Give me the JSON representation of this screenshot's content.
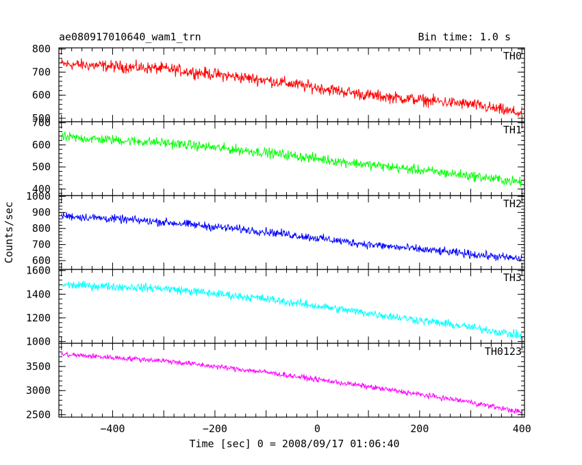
{
  "header": {
    "title": "ae080917010640_wam1_trn",
    "bin_time": "Bin time: 1.0 s"
  },
  "axes": {
    "xlabel": "Time [sec] 0 = 2008/09/17 01:06:40",
    "ylabel": "Counts/sec"
  },
  "chart_data": {
    "type": "line",
    "title": "ae080917010640_wam1_trn",
    "xlabel": "Time [sec] 0 = 2008/09/17 01:06:40",
    "ylabel": "Counts/sec",
    "xlim": [
      -505,
      405
    ],
    "x_ticks": [
      -400,
      -200,
      0,
      200,
      400
    ],
    "bin_time_s": 1.0,
    "x_range": [
      -500,
      400
    ],
    "grid": false,
    "panels": [
      {
        "name": "TH0",
        "color": "#ff0000",
        "ylim": [
          485,
          805
        ],
        "y_ticks": [
          500,
          600,
          700,
          800
        ],
        "trend": {
          "x": [
            -500,
            -300,
            -100,
            100,
            300,
            400
          ],
          "y": [
            735,
            715,
            665,
            600,
            560,
            520
          ]
        },
        "noise_amplitude": 40
      },
      {
        "name": "TH1",
        "color": "#00ff00",
        "ylim": [
          370,
          705
        ],
        "y_ticks": [
          400,
          500,
          600,
          700
        ],
        "trend": {
          "x": [
            -500,
            -300,
            -100,
            100,
            300,
            400
          ],
          "y": [
            635,
            610,
            565,
            510,
            460,
            430
          ]
        },
        "noise_amplitude": 35
      },
      {
        "name": "TH2",
        "color": "#0000ff",
        "ylim": [
          545,
          1005
        ],
        "y_ticks": [
          600,
          700,
          800,
          900,
          1000
        ],
        "trend": {
          "x": [
            -500,
            -300,
            -100,
            100,
            300,
            400
          ],
          "y": [
            880,
            840,
            780,
            700,
            640,
            610
          ]
        },
        "noise_amplitude": 40
      },
      {
        "name": "TH3",
        "color": "#00ffff",
        "ylim": [
          985,
          1610
        ],
        "y_ticks": [
          1000,
          1200,
          1400,
          1600
        ],
        "trend": {
          "x": [
            -500,
            -300,
            -100,
            100,
            300,
            400
          ],
          "y": [
            1480,
            1450,
            1360,
            1240,
            1120,
            1050
          ]
        },
        "noise_amplitude": 55
      },
      {
        "name": "TH0123",
        "color": "#ff00ff",
        "ylim": [
          2450,
          3980
        ],
        "y_ticks": [
          2500,
          3000,
          3500
        ],
        "trend": {
          "x": [
            -500,
            -300,
            -100,
            100,
            300,
            400
          ],
          "y": [
            3750,
            3620,
            3380,
            3080,
            2760,
            2550
          ]
        },
        "noise_amplitude": 85
      }
    ]
  }
}
